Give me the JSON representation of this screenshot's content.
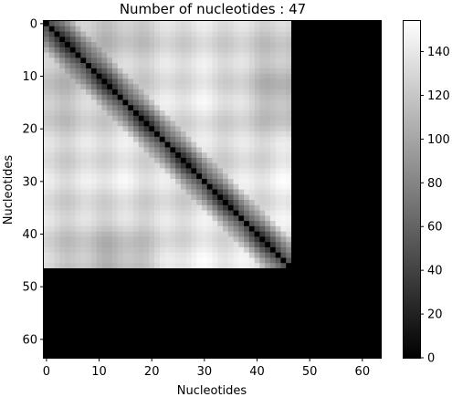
{
  "chart_data": {
    "type": "heatmap",
    "title": "Number of nucleotides : 47",
    "xlabel": "Nucleotides",
    "ylabel": "Nucleotides",
    "matrix_size": 64,
    "active_size": 47,
    "xlim": [
      0,
      63
    ],
    "ylim": [
      63,
      0
    ],
    "x_ticks": [
      0,
      10,
      20,
      30,
      40,
      50,
      60
    ],
    "y_ticks": [
      0,
      10,
      20,
      30,
      40,
      50,
      60
    ],
    "colormap": "gray",
    "color_range": [
      0,
      154
    ],
    "colorbar_ticks": [
      0,
      20,
      40,
      60,
      80,
      100,
      120,
      140
    ],
    "hotspots": [
      {
        "row": 0,
        "col": 13,
        "value": 120
      },
      {
        "row": 0,
        "col": 29,
        "value": 140
      },
      {
        "row": 13,
        "col": 0,
        "value": 120
      },
      {
        "row": 13,
        "col": 29,
        "value": 148
      },
      {
        "row": 13,
        "col": 46,
        "value": 110
      },
      {
        "row": 29,
        "col": 0,
        "value": 140
      },
      {
        "row": 29,
        "col": 13,
        "value": 148
      },
      {
        "row": 29,
        "col": 46,
        "value": 150
      },
      {
        "row": 46,
        "col": 13,
        "value": 110
      },
      {
        "row": 46,
        "col": 29,
        "value": 150
      }
    ],
    "diagonal_value": 0,
    "outside_value": 0,
    "grid": false
  }
}
